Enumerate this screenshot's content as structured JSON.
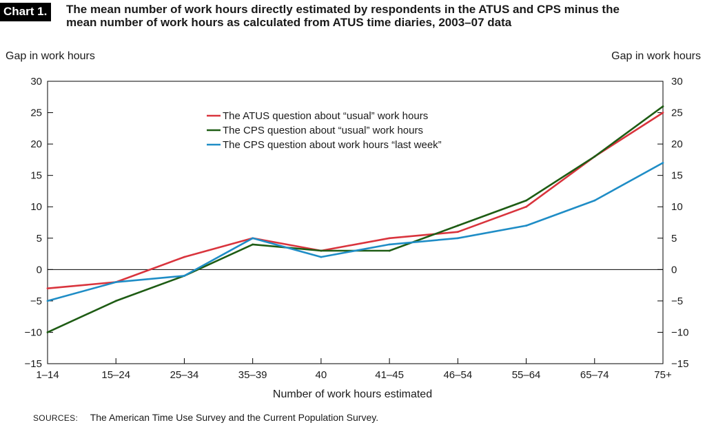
{
  "header": {
    "chart_tag": "Chart 1.",
    "title_line1": "The mean number of work hours directly estimated by respondents in the ATUS and CPS minus the",
    "title_line2": "mean number of work hours as calculated from ATUS time diaries, 2003–07 data"
  },
  "sources": {
    "label": "SOURCES:",
    "text": "The American Time Use Survey and the Current Population Survey."
  },
  "colors": {
    "atus_usual": "#d9343d",
    "cps_usual": "#1e5c14",
    "cps_last_week": "#1f8dc6",
    "axis": "#000000"
  },
  "chart_data": {
    "type": "line",
    "title": "The mean number of work hours directly estimated by respondents in the ATUS and CPS minus the mean number of work hours as calculated from ATUS time diaries, 2003–07 data",
    "xlabel": "Number of work hours estimated",
    "ylabel_left": "Gap in work hours",
    "ylabel_right": "Gap in work hours",
    "ylim": [
      -15,
      30
    ],
    "yticks": [
      -15,
      -10,
      -5,
      0,
      5,
      10,
      15,
      20,
      25,
      30
    ],
    "ytick_labels": [
      "−15",
      "−10",
      "−5",
      "0",
      "5",
      "10",
      "15",
      "20",
      "25",
      "30"
    ],
    "categories": [
      "1–14",
      "15–24",
      "25–34",
      "35–39",
      "40",
      "41–45",
      "46–54",
      "55–64",
      "65–74",
      "75+"
    ],
    "grid": false,
    "zero_line": true,
    "legend_position": "upper-center",
    "series": [
      {
        "name": "The ATUS question about “usual” work hours",
        "color": "#d9343d",
        "values": [
          -3,
          -2,
          2,
          5,
          3,
          5,
          6,
          10,
          18,
          25
        ]
      },
      {
        "name": "The CPS question about “usual” work hours",
        "color": "#1e5c14",
        "values": [
          -10,
          -5,
          -1,
          4,
          3,
          3,
          7,
          11,
          18,
          26
        ]
      },
      {
        "name": "The CPS question about work hours “last week”",
        "color": "#1f8dc6",
        "values": [
          -5,
          -2,
          -1,
          5,
          2,
          4,
          5,
          7,
          11,
          17
        ]
      }
    ]
  }
}
